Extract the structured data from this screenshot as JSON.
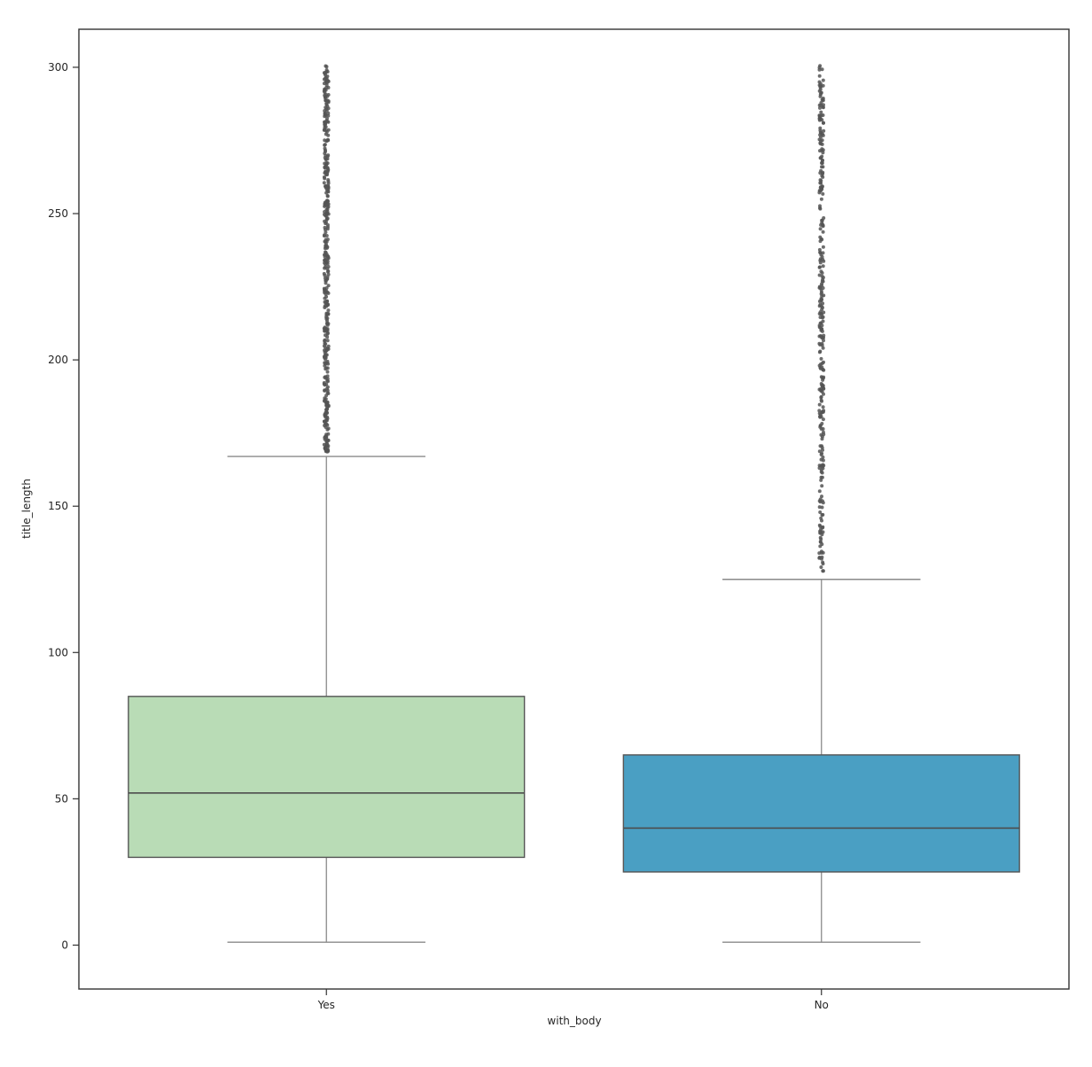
{
  "figure": {
    "background": "#ffffff"
  },
  "chart_data": {
    "type": "boxplot",
    "title": "",
    "xlabel": "with_body",
    "ylabel": "title_length",
    "categories": [
      "Yes",
      "No"
    ],
    "yticks": [
      0,
      50,
      100,
      150,
      200,
      250,
      300
    ],
    "ylim": [
      -15,
      313
    ],
    "grid": false,
    "legend": "none",
    "series": [
      {
        "category": "Yes",
        "fill": "#b9dcb6",
        "whisker_low": 1,
        "q1": 30,
        "median": 52,
        "q3": 85,
        "whisker_high": 167,
        "outlier_min": 168,
        "outlier_max": 301,
        "outlier_count": 400
      },
      {
        "category": "No",
        "fill": "#4a9fc3",
        "whisker_low": 1,
        "q1": 25,
        "median": 40,
        "q3": 65,
        "whisker_high": 125,
        "outlier_min": 126,
        "outlier_max": 301,
        "outlier_count": 320
      }
    ],
    "colors": {
      "box_edge": "#555555",
      "whisker": "#8a8a8a",
      "median": "#4d4d4d",
      "outlier": "#555555",
      "axis": "#333333",
      "tick_label": "#262626"
    }
  }
}
